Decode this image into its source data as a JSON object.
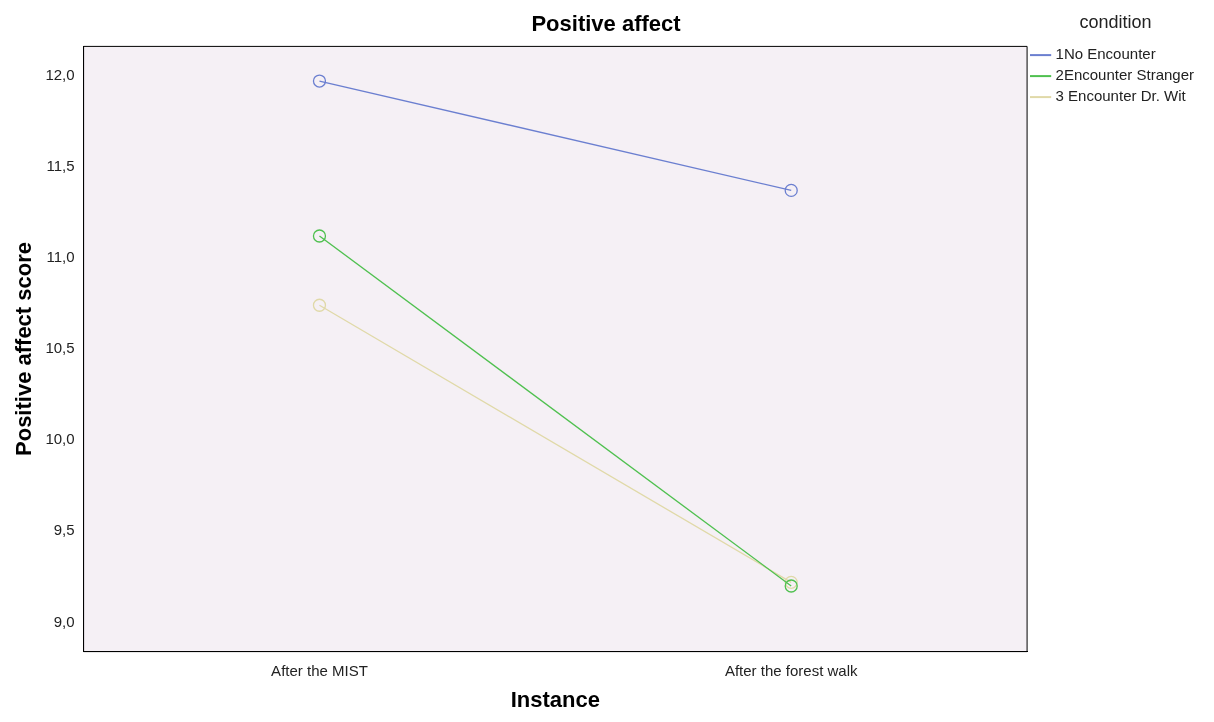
{
  "chart_data": {
    "type": "line",
    "title": "Positive affect",
    "xlabel": "Instance",
    "ylabel": "Positive affect score",
    "legend_title": "condition",
    "categories": [
      "After the MIST",
      "After the forest walk"
    ],
    "series": [
      {
        "name": "1No Encounter",
        "color": "#6b7fd0",
        "values": [
          11.97,
          11.37
        ]
      },
      {
        "name": "2Encounter Stranger",
        "color": "#4fc04f",
        "values": [
          11.12,
          9.2
        ]
      },
      {
        "name": "3 Encounter Dr. Wit",
        "color": "#e0d9a8",
        "values": [
          10.74,
          9.22
        ]
      }
    ],
    "ylim": [
      8.84,
      12.16
    ],
    "yticks": [
      {
        "value": 9,
        "label": "9,0"
      },
      {
        "value": 9.5,
        "label": "9,5"
      },
      {
        "value": 10,
        "label": "10,0"
      },
      {
        "value": 10.5,
        "label": "10,5"
      },
      {
        "value": 11,
        "label": "11,0"
      },
      {
        "value": 11.5,
        "label": "11,5"
      },
      {
        "value": 12,
        "label": "12,0"
      }
    ],
    "grid": false,
    "legend": "top right",
    "marker": "circle",
    "line_style": "solid"
  }
}
